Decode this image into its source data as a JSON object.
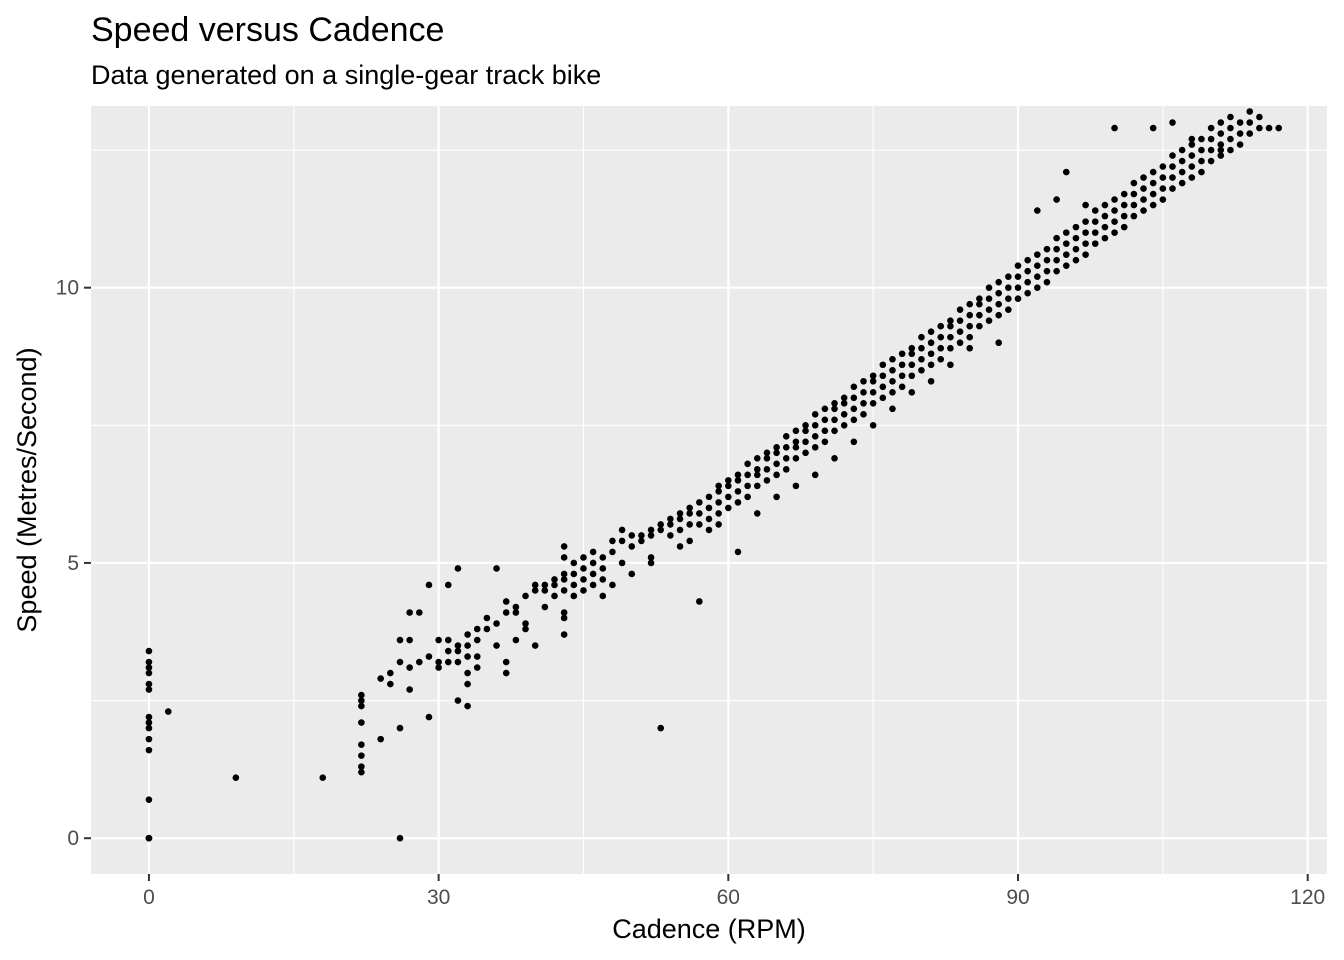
{
  "chart_data": {
    "type": "scatter",
    "title": "Speed versus Cadence",
    "subtitle": "Data generated on a single-gear track bike",
    "xlabel": "Cadence (RPM)",
    "ylabel": "Speed (Metres/Second)",
    "xlim": [
      -6,
      122
    ],
    "ylim": [
      -0.65,
      13.3
    ],
    "x_ticks": [
      0,
      30,
      60,
      90,
      120
    ],
    "y_ticks": [
      0,
      5,
      10
    ],
    "x_tick_labels": [
      "0",
      "30",
      "60",
      "90",
      "120"
    ],
    "y_tick_labels": [
      "0",
      "5",
      "10"
    ],
    "grid": true,
    "colors": {
      "panel": "#ebebeb",
      "grid": "#ffffff",
      "point": "#000000",
      "tick": "#333333"
    },
    "points": [
      [
        0,
        0
      ],
      [
        0,
        0
      ],
      [
        0,
        0
      ],
      [
        0,
        0.7
      ],
      [
        0,
        1.6
      ],
      [
        0,
        1.8
      ],
      [
        0,
        2.0
      ],
      [
        0,
        2.1
      ],
      [
        0,
        2.2
      ],
      [
        0,
        2.7
      ],
      [
        0,
        2.8
      ],
      [
        0,
        3.0
      ],
      [
        0,
        3.1
      ],
      [
        0,
        3.2
      ],
      [
        0,
        3.4
      ],
      [
        2,
        2.3
      ],
      [
        9,
        1.1
      ],
      [
        18,
        1.1
      ],
      [
        22,
        1.2
      ],
      [
        22,
        1.3
      ],
      [
        22,
        1.5
      ],
      [
        22,
        1.7
      ],
      [
        22,
        2.1
      ],
      [
        22,
        2.4
      ],
      [
        22,
        2.5
      ],
      [
        22,
        2.6
      ],
      [
        24,
        1.8
      ],
      [
        24,
        2.9
      ],
      [
        25,
        2.8
      ],
      [
        25,
        3.0
      ],
      [
        26,
        0
      ],
      [
        26,
        2.0
      ],
      [
        26,
        3.2
      ],
      [
        26,
        3.6
      ],
      [
        27,
        2.7
      ],
      [
        27,
        3.1
      ],
      [
        27,
        3.6
      ],
      [
        27,
        4.1
      ],
      [
        28,
        3.2
      ],
      [
        28,
        4.1
      ],
      [
        29,
        2.2
      ],
      [
        29,
        3.3
      ],
      [
        29,
        4.6
      ],
      [
        30,
        3.1
      ],
      [
        30,
        3.2
      ],
      [
        30,
        3.6
      ],
      [
        31,
        3.2
      ],
      [
        31,
        3.4
      ],
      [
        31,
        3.6
      ],
      [
        31,
        4.6
      ],
      [
        32,
        2.5
      ],
      [
        32,
        3.2
      ],
      [
        32,
        3.4
      ],
      [
        32,
        3.5
      ],
      [
        32,
        4.9
      ],
      [
        33,
        2.4
      ],
      [
        33,
        2.8
      ],
      [
        33,
        3.0
      ],
      [
        33,
        3.3
      ],
      [
        33,
        3.5
      ],
      [
        33,
        3.7
      ],
      [
        34,
        3.1
      ],
      [
        34,
        3.3
      ],
      [
        34,
        3.6
      ],
      [
        34,
        3.8
      ],
      [
        35,
        3.8
      ],
      [
        35,
        4.0
      ],
      [
        36,
        3.5
      ],
      [
        36,
        3.9
      ],
      [
        36,
        4.9
      ],
      [
        37,
        3.0
      ],
      [
        37,
        3.2
      ],
      [
        37,
        4.1
      ],
      [
        37,
        4.3
      ],
      [
        38,
        3.6
      ],
      [
        38,
        4.1
      ],
      [
        38,
        4.2
      ],
      [
        39,
        3.9
      ],
      [
        39,
        4.4
      ],
      [
        39,
        3.8
      ],
      [
        40,
        3.5
      ],
      [
        40,
        4.5
      ],
      [
        40,
        4.6
      ],
      [
        41,
        4.2
      ],
      [
        41,
        4.5
      ],
      [
        41,
        4.6
      ],
      [
        42,
        4.4
      ],
      [
        42,
        4.6
      ],
      [
        42,
        4.7
      ],
      [
        43,
        3.7
      ],
      [
        43,
        4.0
      ],
      [
        43,
        4.1
      ],
      [
        43,
        4.5
      ],
      [
        43,
        4.7
      ],
      [
        43,
        4.8
      ],
      [
        43,
        5.1
      ],
      [
        43,
        5.3
      ],
      [
        44,
        4.4
      ],
      [
        44,
        4.6
      ],
      [
        44,
        4.8
      ],
      [
        44,
        5.0
      ],
      [
        45,
        4.5
      ],
      [
        45,
        4.7
      ],
      [
        45,
        4.9
      ],
      [
        45,
        5.1
      ],
      [
        46,
        4.6
      ],
      [
        46,
        4.8
      ],
      [
        46,
        5.0
      ],
      [
        46,
        5.2
      ],
      [
        47,
        4.4
      ],
      [
        47,
        4.7
      ],
      [
        47,
        4.9
      ],
      [
        47,
        5.1
      ],
      [
        48,
        4.6
      ],
      [
        48,
        5.2
      ],
      [
        48,
        5.4
      ],
      [
        49,
        5.0
      ],
      [
        49,
        5.4
      ],
      [
        49,
        5.6
      ],
      [
        50,
        4.8
      ],
      [
        50,
        5.3
      ],
      [
        50,
        5.5
      ],
      [
        51,
        5.4
      ],
      [
        51,
        5.5
      ],
      [
        52,
        5.0
      ],
      [
        52,
        5.1
      ],
      [
        52,
        5.5
      ],
      [
        52,
        5.6
      ],
      [
        53,
        5.6
      ],
      [
        53,
        5.7
      ],
      [
        54,
        5.5
      ],
      [
        54,
        5.7
      ],
      [
        54,
        5.8
      ],
      [
        55,
        5.3
      ],
      [
        55,
        5.6
      ],
      [
        55,
        5.8
      ],
      [
        55,
        5.9
      ],
      [
        56,
        5.4
      ],
      [
        56,
        5.7
      ],
      [
        56,
        5.9
      ],
      [
        56,
        6.0
      ],
      [
        57,
        5.7
      ],
      [
        57,
        5.9
      ],
      [
        57,
        6.1
      ],
      [
        58,
        5.6
      ],
      [
        58,
        5.8
      ],
      [
        58,
        6.0
      ],
      [
        58,
        6.2
      ],
      [
        59,
        5.7
      ],
      [
        59,
        5.9
      ],
      [
        59,
        6.1
      ],
      [
        59,
        6.3
      ],
      [
        59,
        6.4
      ],
      [
        60,
        6.0
      ],
      [
        60,
        6.2
      ],
      [
        60,
        6.4
      ],
      [
        60,
        6.5
      ],
      [
        61,
        6.1
      ],
      [
        61,
        6.3
      ],
      [
        61,
        6.5
      ],
      [
        61,
        6.6
      ],
      [
        62,
        6.2
      ],
      [
        62,
        6.4
      ],
      [
        62,
        6.6
      ],
      [
        62,
        6.8
      ],
      [
        63,
        6.4
      ],
      [
        63,
        6.6
      ],
      [
        63,
        6.7
      ],
      [
        63,
        6.9
      ],
      [
        64,
        6.5
      ],
      [
        64,
        6.7
      ],
      [
        64,
        6.9
      ],
      [
        64,
        7.0
      ],
      [
        65,
        6.6
      ],
      [
        65,
        6.8
      ],
      [
        65,
        7.0
      ],
      [
        65,
        7.1
      ],
      [
        66,
        6.7
      ],
      [
        66,
        6.9
      ],
      [
        66,
        7.1
      ],
      [
        66,
        7.3
      ],
      [
        67,
        6.9
      ],
      [
        67,
        7.1
      ],
      [
        67,
        7.2
      ],
      [
        67,
        7.4
      ],
      [
        68,
        7.0
      ],
      [
        68,
        7.2
      ],
      [
        68,
        7.4
      ],
      [
        68,
        7.5
      ],
      [
        69,
        7.1
      ],
      [
        69,
        7.3
      ],
      [
        69,
        7.5
      ],
      [
        69,
        7.7
      ],
      [
        70,
        7.2
      ],
      [
        70,
        7.4
      ],
      [
        70,
        7.6
      ],
      [
        70,
        7.8
      ],
      [
        71,
        7.4
      ],
      [
        71,
        7.6
      ],
      [
        71,
        7.8
      ],
      [
        71,
        7.9
      ],
      [
        72,
        7.5
      ],
      [
        72,
        7.7
      ],
      [
        72,
        7.9
      ],
      [
        72,
        8.0
      ],
      [
        73,
        7.6
      ],
      [
        73,
        7.8
      ],
      [
        73,
        8.0
      ],
      [
        73,
        8.2
      ],
      [
        74,
        7.7
      ],
      [
        74,
        7.9
      ],
      [
        74,
        8.1
      ],
      [
        74,
        8.3
      ],
      [
        75,
        7.9
      ],
      [
        75,
        8.1
      ],
      [
        75,
        8.3
      ],
      [
        75,
        8.4
      ],
      [
        76,
        8.0
      ],
      [
        76,
        8.2
      ],
      [
        76,
        8.4
      ],
      [
        76,
        8.6
      ],
      [
        77,
        8.1
      ],
      [
        77,
        8.3
      ],
      [
        77,
        8.5
      ],
      [
        77,
        8.7
      ],
      [
        78,
        8.2
      ],
      [
        78,
        8.4
      ],
      [
        78,
        8.6
      ],
      [
        78,
        8.8
      ],
      [
        79,
        8.4
      ],
      [
        79,
        8.6
      ],
      [
        79,
        8.8
      ],
      [
        79,
        8.9
      ],
      [
        80,
        8.5
      ],
      [
        80,
        8.7
      ],
      [
        80,
        8.9
      ],
      [
        80,
        9.1
      ],
      [
        81,
        8.6
      ],
      [
        81,
        8.8
      ],
      [
        81,
        9.0
      ],
      [
        81,
        9.2
      ],
      [
        82,
        8.7
      ],
      [
        82,
        8.9
      ],
      [
        82,
        9.1
      ],
      [
        82,
        9.3
      ],
      [
        83,
        8.9
      ],
      [
        83,
        9.1
      ],
      [
        83,
        9.3
      ],
      [
        83,
        9.4
      ],
      [
        84,
        9.0
      ],
      [
        84,
        9.2
      ],
      [
        84,
        9.4
      ],
      [
        84,
        9.6
      ],
      [
        85,
        9.1
      ],
      [
        85,
        9.3
      ],
      [
        85,
        9.5
      ],
      [
        85,
        9.7
      ],
      [
        86,
        9.3
      ],
      [
        86,
        9.5
      ],
      [
        86,
        9.7
      ],
      [
        86,
        9.8
      ],
      [
        87,
        9.4
      ],
      [
        87,
        9.6
      ],
      [
        87,
        9.8
      ],
      [
        87,
        10.0
      ],
      [
        88,
        9.5
      ],
      [
        88,
        9.7
      ],
      [
        88,
        9.9
      ],
      [
        88,
        10.1
      ],
      [
        89,
        9.6
      ],
      [
        89,
        9.8
      ],
      [
        89,
        10.0
      ],
      [
        89,
        10.2
      ],
      [
        90,
        9.8
      ],
      [
        90,
        10.0
      ],
      [
        90,
        10.2
      ],
      [
        90,
        10.4
      ],
      [
        91,
        9.9
      ],
      [
        91,
        10.1
      ],
      [
        91,
        10.3
      ],
      [
        91,
        10.5
      ],
      [
        92,
        10.0
      ],
      [
        92,
        10.2
      ],
      [
        92,
        10.4
      ],
      [
        92,
        10.6
      ],
      [
        93,
        10.1
      ],
      [
        93,
        10.3
      ],
      [
        93,
        10.5
      ],
      [
        93,
        10.7
      ],
      [
        94,
        10.3
      ],
      [
        94,
        10.5
      ],
      [
        94,
        10.7
      ],
      [
        94,
        10.9
      ],
      [
        95,
        10.4
      ],
      [
        95,
        10.6
      ],
      [
        95,
        10.8
      ],
      [
        95,
        11.0
      ],
      [
        96,
        10.5
      ],
      [
        96,
        10.7
      ],
      [
        96,
        10.9
      ],
      [
        96,
        11.1
      ],
      [
        97,
        10.6
      ],
      [
        97,
        10.8
      ],
      [
        97,
        11.0
      ],
      [
        97,
        11.2
      ],
      [
        98,
        10.8
      ],
      [
        98,
        11.0
      ],
      [
        98,
        11.2
      ],
      [
        98,
        11.4
      ],
      [
        99,
        10.9
      ],
      [
        99,
        11.1
      ],
      [
        99,
        11.3
      ],
      [
        99,
        11.5
      ],
      [
        100,
        11.0
      ],
      [
        100,
        11.2
      ],
      [
        100,
        11.4
      ],
      [
        100,
        11.6
      ],
      [
        101,
        11.1
      ],
      [
        101,
        11.3
      ],
      [
        101,
        11.5
      ],
      [
        101,
        11.7
      ],
      [
        102,
        11.3
      ],
      [
        102,
        11.5
      ],
      [
        102,
        11.7
      ],
      [
        102,
        11.9
      ],
      [
        103,
        11.4
      ],
      [
        103,
        11.6
      ],
      [
        103,
        11.8
      ],
      [
        103,
        12.0
      ],
      [
        104,
        11.5
      ],
      [
        104,
        11.7
      ],
      [
        104,
        11.9
      ],
      [
        104,
        12.1
      ],
      [
        105,
        11.6
      ],
      [
        105,
        11.8
      ],
      [
        105,
        12.0
      ],
      [
        105,
        12.2
      ],
      [
        106,
        11.8
      ],
      [
        106,
        12.0
      ],
      [
        106,
        12.2
      ],
      [
        106,
        12.4
      ],
      [
        107,
        11.9
      ],
      [
        107,
        12.1
      ],
      [
        107,
        12.3
      ],
      [
        107,
        12.5
      ],
      [
        108,
        12.0
      ],
      [
        108,
        12.2
      ],
      [
        108,
        12.4
      ],
      [
        108,
        12.6
      ],
      [
        109,
        12.1
      ],
      [
        109,
        12.3
      ],
      [
        109,
        12.5
      ],
      [
        109,
        12.7
      ],
      [
        110,
        12.3
      ],
      [
        110,
        12.5
      ],
      [
        110,
        12.7
      ],
      [
        110,
        12.9
      ],
      [
        111,
        12.4
      ],
      [
        111,
        12.6
      ],
      [
        111,
        12.8
      ],
      [
        111,
        13.0
      ],
      [
        112,
        12.5
      ],
      [
        112,
        12.7
      ],
      [
        112,
        12.9
      ],
      [
        112,
        13.1
      ],
      [
        113,
        12.6
      ],
      [
        113,
        12.8
      ],
      [
        113,
        13.0
      ],
      [
        114,
        12.8
      ],
      [
        114,
        13.0
      ],
      [
        114,
        13.2
      ],
      [
        115,
        12.9
      ],
      [
        115,
        13.1
      ],
      [
        116,
        12.9
      ],
      [
        117,
        12.9
      ],
      [
        53,
        2.0
      ],
      [
        57,
        4.3
      ],
      [
        61,
        5.2
      ],
      [
        63,
        5.9
      ],
      [
        65,
        6.2
      ],
      [
        67,
        6.4
      ],
      [
        69,
        6.6
      ],
      [
        71,
        6.9
      ],
      [
        73,
        7.2
      ],
      [
        75,
        7.5
      ],
      [
        77,
        7.8
      ],
      [
        79,
        8.1
      ],
      [
        81,
        8.3
      ],
      [
        83,
        8.6
      ],
      [
        85,
        8.9
      ],
      [
        88,
        9.0
      ],
      [
        92,
        11.4
      ],
      [
        94,
        11.6
      ],
      [
        95,
        12.1
      ],
      [
        97,
        11.5
      ],
      [
        100,
        12.9
      ],
      [
        104,
        12.9
      ],
      [
        106,
        13.0
      ],
      [
        108,
        12.7
      ],
      [
        111,
        12.5
      ]
    ]
  }
}
